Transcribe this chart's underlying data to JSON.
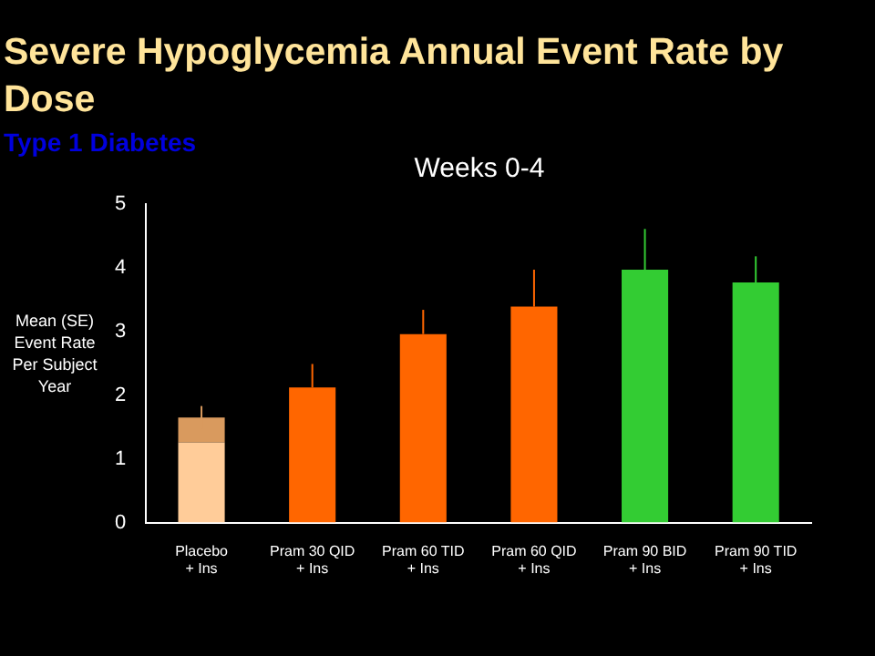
{
  "chart_data": {
    "type": "bar",
    "title": "Severe Hypoglycemia Annual Event Rate by Dose",
    "subtitle": "Type 1 Diabetes",
    "annotations": [
      "Weeks 0-4"
    ],
    "ylabel": "Mean (SE) Event Rate Per Subject Year",
    "categories": [
      "Placebo\n+ Ins",
      "Pram 30 QID\n+ Ins",
      "Pram 60 TID\n+ Ins",
      "Pram 60 QID\n+ Ins",
      "Pram 90 BID\n+ Ins",
      "Pram 90 TID\n+ Ins"
    ],
    "stacked": true,
    "series": [
      {
        "colors": [
          "#ffcc99",
          "#ff6600",
          "#ff6600",
          "#ff6600",
          "#33cc33",
          "#33cc33"
        ],
        "values": [
          1.26,
          2.12,
          2.96,
          3.39,
          3.97,
          3.77
        ],
        "errors": [
          null,
          [
            2.12,
            2.49
          ],
          [
            2.96,
            3.34
          ],
          [
            3.39,
            3.97
          ],
          [
            3.97,
            4.61
          ],
          [
            3.77,
            4.18
          ]
        ]
      },
      {
        "color": "#d99a5e",
        "values": [
          0.39,
          null,
          null,
          null,
          null,
          null
        ],
        "errors": [
          0.18,
          null,
          null,
          null,
          null,
          null
        ]
      }
    ],
    "ylim": [
      0,
      5
    ],
    "yticks": [
      0,
      1,
      2,
      3,
      4,
      5
    ],
    "grid": false,
    "legend": false
  }
}
